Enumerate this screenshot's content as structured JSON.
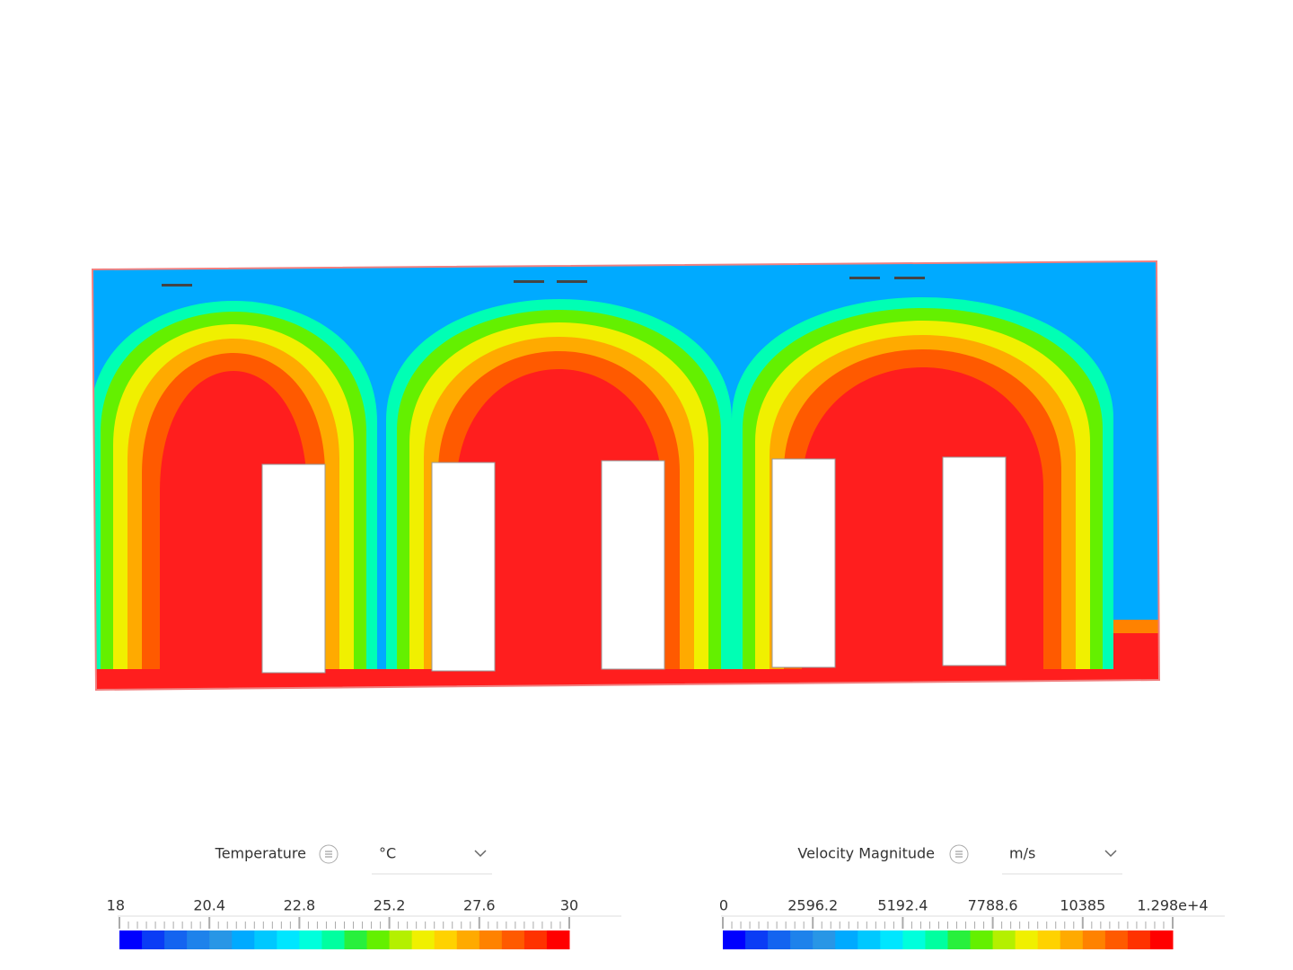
{
  "legends": [
    {
      "title": "Temperature",
      "unit": "°C",
      "ticks": [
        "18",
        "20.4",
        "22.8",
        "25.2",
        "27.6",
        "30"
      ],
      "colors": [
        "#0000ff",
        "#0a3cf5",
        "#1464f0",
        "#1e82eb",
        "#2896e6",
        "#00aaff",
        "#00c8ff",
        "#00e6ff",
        "#00ffdc",
        "#00ffa0",
        "#28f03c",
        "#64f000",
        "#b4f000",
        "#f0f000",
        "#ffd200",
        "#ffaa00",
        "#ff8200",
        "#ff5a00",
        "#ff3200",
        "#ff0000"
      ]
    },
    {
      "title": "Velocity Magnitude",
      "unit": "m/s",
      "ticks": [
        "0",
        "2596.2",
        "5192.4",
        "7788.6",
        "10385",
        "1.298e+4"
      ],
      "colors": [
        "#0000ff",
        "#0a3cf5",
        "#1464f0",
        "#1e82eb",
        "#2896e6",
        "#00aaff",
        "#00c8ff",
        "#00e6ff",
        "#00ffdc",
        "#00ffa0",
        "#28f03c",
        "#64f000",
        "#b4f000",
        "#f0f000",
        "#ffd200",
        "#ffaa00",
        "#ff8200",
        "#ff5a00",
        "#ff3200",
        "#ff0000"
      ]
    }
  ]
}
